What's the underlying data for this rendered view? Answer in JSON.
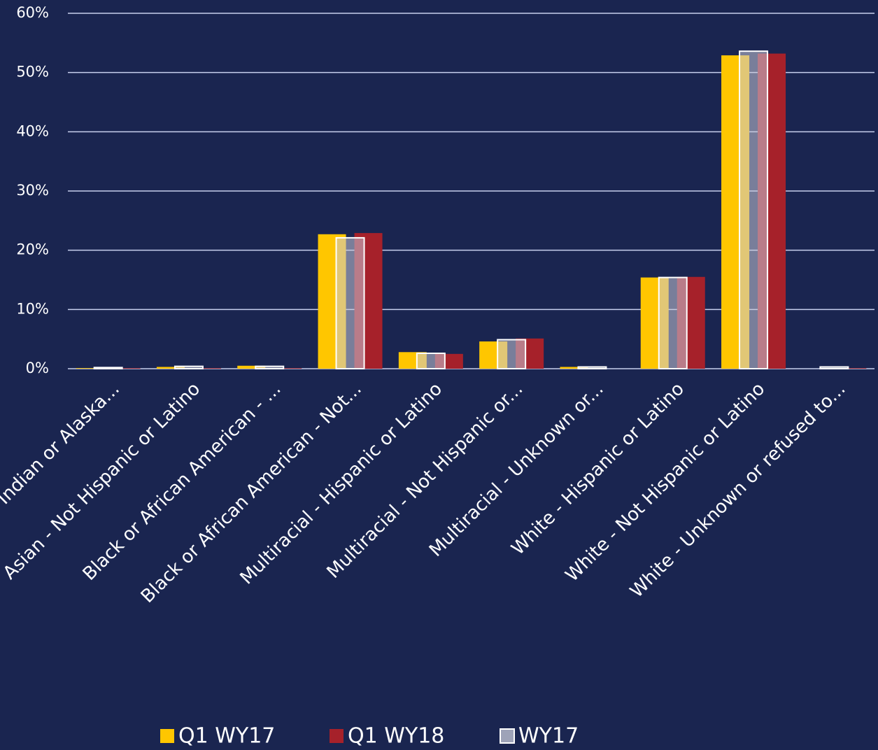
{
  "chart_data": {
    "type": "bar",
    "categories": [
      "American Indian or Alaska...",
      "Asian - Not Hispanic or Latino",
      "Black or African American - ...",
      "Black or African American - Not...",
      "Multiracial - Hispanic or Latino",
      "Multiracial - Not Hispanic or...",
      "Multiracial - Unknown or...",
      "White - Hispanic or Latino",
      "White - Not Hispanic or Latino",
      "White - Unknown or refused to..."
    ],
    "series": [
      {
        "name": "Q1 WY17",
        "color": "#ffc600",
        "values": [
          0.1,
          0.3,
          0.5,
          22.7,
          2.8,
          4.6,
          0.3,
          15.4,
          52.9,
          0.0
        ]
      },
      {
        "name": "Q1 WY18",
        "color": "#a6212a",
        "values": [
          0.1,
          0.1,
          0.1,
          22.9,
          2.5,
          5.1,
          0.0,
          15.5,
          53.2,
          0.1
        ]
      },
      {
        "name": "WY17",
        "color": "#ffffff",
        "values": [
          0.2,
          0.4,
          0.4,
          22.1,
          2.6,
          4.9,
          0.3,
          15.4,
          53.6,
          0.3
        ]
      }
    ],
    "ylim": [
      0,
      60
    ],
    "yticks": [
      {
        "value": 0,
        "label": "0%"
      },
      {
        "value": 10,
        "label": "10%"
      },
      {
        "value": 20,
        "label": "20%"
      },
      {
        "value": 30,
        "label": "30%"
      },
      {
        "value": 40,
        "label": "40%"
      },
      {
        "value": 50,
        "label": "50%"
      },
      {
        "value": 60,
        "label": "60%"
      }
    ],
    "grid": true,
    "legend": "bottom"
  }
}
